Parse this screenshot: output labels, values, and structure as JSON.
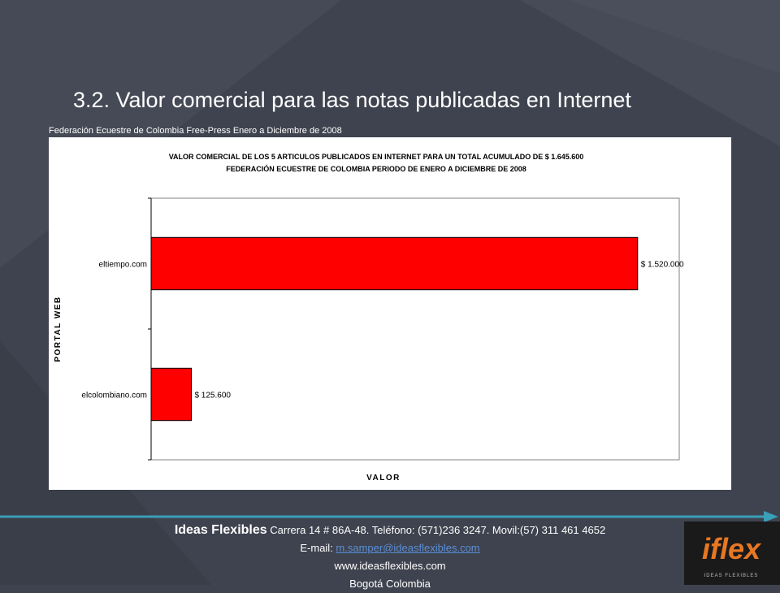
{
  "slide": {
    "title": "3.2. Valor comercial para las notas publicadas en Internet",
    "subtitle": "Federación Ecuestre de Colombia  Free-Press Enero a Diciembre de 2008"
  },
  "chart_data": {
    "type": "bar",
    "orientation": "horizontal",
    "title": "VALOR COMERCIAL DE LOS 5 ARTICULOS PUBLICADOS EN INTERNET PARA UN TOTAL ACUMULADO DE $ 1.645.600",
    "subtitle": "FEDERACIÓN ECUESTRE DE COLOMBIA PERIODO DE ENERO A DICIEMBRE DE 2008",
    "xlabel": "VALOR",
    "ylabel": "PORTAL WEB",
    "categories": [
      "eltiempo.com",
      "elcolombiano.com"
    ],
    "values": [
      1520000,
      125600
    ],
    "data_labels": [
      "$ 1.520.000",
      "$ 125.600"
    ],
    "xlim": [
      0,
      1650000
    ],
    "bar_color": "#ff0000",
    "grid": false,
    "legend": "none"
  },
  "footer": {
    "company": "Ideas Flexibles",
    "address": " Carrera 14 # 86A-48. Teléfono: (571)236 3247. Movil:(57) 311 461 4652",
    "email_prefix": "E-mail: ",
    "email": "m.samper@ideasflexibles.com",
    "website": "www.ideasflexibles.com",
    "city": "Bogotá Colombia"
  },
  "logo": {
    "text": "iflex",
    "tagline": "IDEAS FLEXIBLES"
  },
  "colors": {
    "background": "#3f434f",
    "accent_line": "#3a9fb8",
    "bar": "#ff0000"
  }
}
